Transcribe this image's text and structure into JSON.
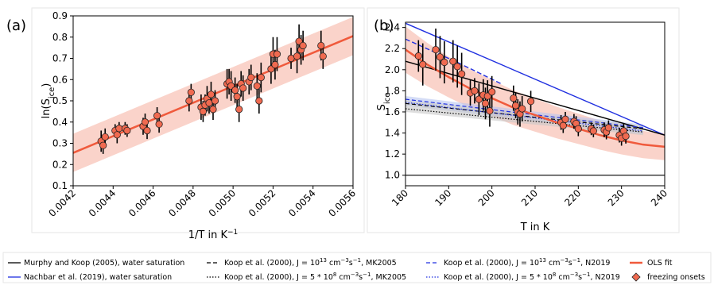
{
  "colors": {
    "fit": "#f05a3c",
    "band": "#f8c4b8",
    "marker_fill": "#f06a50",
    "marker_edge": "#222222",
    "errbar": "#000000",
    "murphy": "#000000",
    "nachbar": "#2030e0",
    "blue_band": "#b8c4f0",
    "gray_band": "#c8c8c8"
  },
  "chart_data": [
    {
      "panel": "(a)",
      "type": "scatter",
      "xlabel": "1/T in K",
      "xlabel_sup": "−1",
      "ylabel": "ln(S",
      "ylabel_sub": "ice",
      "ylabel_end": ")",
      "xlim": [
        0.0042,
        0.0056
      ],
      "ylim": [
        0.1,
        0.9
      ],
      "xticks": [
        "0.0042",
        "0.0044",
        "0.0046",
        "0.0048",
        "0.0050",
        "0.0052",
        "0.0054",
        "0.0056"
      ],
      "yticks": [
        "0.1",
        "0.2",
        "0.3",
        "0.4",
        "0.5",
        "0.6",
        "0.7",
        "0.8",
        "0.9"
      ],
      "fit_line": [
        [
          0.0042,
          0.255
        ],
        [
          0.0056,
          0.805
        ]
      ],
      "band_halfwidth": 0.09,
      "points": [
        {
          "x": 0.00434,
          "y": 0.31,
          "err": 0.05
        },
        {
          "x": 0.00435,
          "y": 0.29,
          "err": 0.04
        },
        {
          "x": 0.00436,
          "y": 0.33,
          "err": 0.04
        },
        {
          "x": 0.00441,
          "y": 0.36,
          "err": 0.03
        },
        {
          "x": 0.00442,
          "y": 0.34,
          "err": 0.04
        },
        {
          "x": 0.00443,
          "y": 0.37,
          "err": 0.03
        },
        {
          "x": 0.00446,
          "y": 0.37,
          "err": 0.03
        },
        {
          "x": 0.00447,
          "y": 0.36,
          "err": 0.03
        },
        {
          "x": 0.00455,
          "y": 0.38,
          "err": 0.04
        },
        {
          "x": 0.00456,
          "y": 0.4,
          "err": 0.04
        },
        {
          "x": 0.00457,
          "y": 0.36,
          "err": 0.04
        },
        {
          "x": 0.00462,
          "y": 0.43,
          "err": 0.04
        },
        {
          "x": 0.00463,
          "y": 0.39,
          "err": 0.04
        },
        {
          "x": 0.00478,
          "y": 0.5,
          "err": 0.05
        },
        {
          "x": 0.00479,
          "y": 0.54,
          "err": 0.04
        },
        {
          "x": 0.00484,
          "y": 0.47,
          "err": 0.06
        },
        {
          "x": 0.00485,
          "y": 0.45,
          "err": 0.05
        },
        {
          "x": 0.00486,
          "y": 0.48,
          "err": 0.05
        },
        {
          "x": 0.00487,
          "y": 0.51,
          "err": 0.06
        },
        {
          "x": 0.00488,
          "y": 0.49,
          "err": 0.05
        },
        {
          "x": 0.00489,
          "y": 0.53,
          "err": 0.06
        },
        {
          "x": 0.0049,
          "y": 0.46,
          "err": 0.05
        },
        {
          "x": 0.00491,
          "y": 0.5,
          "err": 0.05
        },
        {
          "x": 0.00497,
          "y": 0.58,
          "err": 0.07
        },
        {
          "x": 0.00498,
          "y": 0.59,
          "err": 0.06
        },
        {
          "x": 0.00499,
          "y": 0.57,
          "err": 0.07
        },
        {
          "x": 0.00501,
          "y": 0.55,
          "err": 0.06
        },
        {
          "x": 0.00502,
          "y": 0.52,
          "err": 0.06
        },
        {
          "x": 0.00503,
          "y": 0.46,
          "err": 0.06
        },
        {
          "x": 0.00504,
          "y": 0.58,
          "err": 0.06
        },
        {
          "x": 0.00505,
          "y": 0.56,
          "err": 0.06
        },
        {
          "x": 0.00508,
          "y": 0.59,
          "err": 0.06
        },
        {
          "x": 0.00509,
          "y": 0.61,
          "err": 0.06
        },
        {
          "x": 0.00512,
          "y": 0.57,
          "err": 0.06
        },
        {
          "x": 0.00513,
          "y": 0.5,
          "err": 0.06
        },
        {
          "x": 0.00514,
          "y": 0.61,
          "err": 0.07
        },
        {
          "x": 0.00519,
          "y": 0.65,
          "err": 0.07
        },
        {
          "x": 0.0052,
          "y": 0.72,
          "err": 0.08
        },
        {
          "x": 0.00521,
          "y": 0.67,
          "err": 0.07
        },
        {
          "x": 0.00522,
          "y": 0.72,
          "err": 0.08
        },
        {
          "x": 0.00529,
          "y": 0.7,
          "err": 0.05
        },
        {
          "x": 0.00532,
          "y": 0.71,
          "err": 0.08
        },
        {
          "x": 0.00533,
          "y": 0.78,
          "err": 0.08
        },
        {
          "x": 0.00534,
          "y": 0.74,
          "err": 0.07
        },
        {
          "x": 0.00535,
          "y": 0.76,
          "err": 0.07
        },
        {
          "x": 0.00544,
          "y": 0.76,
          "err": 0.07
        },
        {
          "x": 0.00545,
          "y": 0.71,
          "err": 0.06
        }
      ]
    },
    {
      "panel": "(b)",
      "type": "scatter",
      "xlabel": "T in K",
      "ylabel": "S",
      "ylabel_sub": "ice",
      "xlim": [
        180,
        240
      ],
      "ylim": [
        0.9,
        2.45
      ],
      "xticks": [
        "180",
        "190",
        "200",
        "210",
        "220",
        "230",
        "240"
      ],
      "yticks": [
        "1.0",
        "1.2",
        "1.4",
        "1.6",
        "1.8",
        "2.0",
        "2.2",
        "2.4"
      ],
      "ols_fit": [
        [
          180,
          2.19
        ],
        [
          185,
          2.05
        ],
        [
          190,
          1.93
        ],
        [
          195,
          1.82
        ],
        [
          200,
          1.73
        ],
        [
          205,
          1.64
        ],
        [
          210,
          1.57
        ],
        [
          215,
          1.5
        ],
        [
          220,
          1.44
        ],
        [
          225,
          1.38
        ],
        [
          230,
          1.33
        ],
        [
          235,
          1.29
        ],
        [
          240,
          1.27
        ]
      ],
      "ols_band": 0.22,
      "murphy_sat": [
        [
          180,
          2.08
        ],
        [
          240,
          1.38
        ]
      ],
      "nachbar_sat": [
        [
          180,
          2.44
        ],
        [
          240,
          1.38
        ]
      ],
      "koop_mk_13": [
        [
          180,
          1.68
        ],
        [
          235,
          1.44
        ]
      ],
      "koop_mk_5e8": [
        [
          180,
          1.63
        ],
        [
          235,
          1.41
        ]
      ],
      "koop_n_13": [
        [
          180,
          2.29
        ],
        [
          192,
          2.07
        ],
        [
          202,
          1.87
        ]
      ],
      "koop_n_13b": [
        [
          180,
          1.72
        ],
        [
          235,
          1.45
        ]
      ],
      "koop_n_5e8": [
        [
          180,
          1.69
        ],
        [
          235,
          1.42
        ]
      ],
      "horizontal_line": 1.0,
      "points": [
        {
          "x": 183,
          "y": 2.13,
          "err": 0.15
        },
        {
          "x": 184,
          "y": 2.05,
          "err": 0.2
        },
        {
          "x": 187,
          "y": 2.19,
          "err": 0.2
        },
        {
          "x": 188,
          "y": 2.12,
          "err": 0.2
        },
        {
          "x": 189,
          "y": 2.07,
          "err": 0.2
        },
        {
          "x": 191,
          "y": 2.08,
          "err": 0.2
        },
        {
          "x": 192,
          "y": 2.03,
          "err": 0.2
        },
        {
          "x": 193,
          "y": 1.96,
          "err": 0.2
        },
        {
          "x": 195,
          "y": 1.78,
          "err": 0.12
        },
        {
          "x": 196,
          "y": 1.8,
          "err": 0.12
        },
        {
          "x": 197,
          "y": 1.72,
          "err": 0.15
        },
        {
          "x": 198,
          "y": 1.76,
          "err": 0.15
        },
        {
          "x": 198.5,
          "y": 1.68,
          "err": 0.15
        },
        {
          "x": 199,
          "y": 1.75,
          "err": 0.15
        },
        {
          "x": 199.5,
          "y": 1.61,
          "err": 0.15
        },
        {
          "x": 200,
          "y": 1.79,
          "err": 0.15
        },
        {
          "x": 205,
          "y": 1.73,
          "err": 0.12
        },
        {
          "x": 205.5,
          "y": 1.66,
          "err": 0.12
        },
        {
          "x": 206,
          "y": 1.6,
          "err": 0.12
        },
        {
          "x": 206.5,
          "y": 1.58,
          "err": 0.12
        },
        {
          "x": 207,
          "y": 1.63,
          "err": 0.12
        },
        {
          "x": 209,
          "y": 1.7,
          "err": 0.1
        },
        {
          "x": 216,
          "y": 1.5,
          "err": 0.07
        },
        {
          "x": 216.5,
          "y": 1.47,
          "err": 0.07
        },
        {
          "x": 217,
          "y": 1.53,
          "err": 0.07
        },
        {
          "x": 219,
          "y": 1.51,
          "err": 0.07
        },
        {
          "x": 219.5,
          "y": 1.49,
          "err": 0.07
        },
        {
          "x": 220,
          "y": 1.44,
          "err": 0.07
        },
        {
          "x": 223,
          "y": 1.44,
          "err": 0.06
        },
        {
          "x": 223.5,
          "y": 1.42,
          "err": 0.06
        },
        {
          "x": 226,
          "y": 1.43,
          "err": 0.07
        },
        {
          "x": 226.5,
          "y": 1.41,
          "err": 0.07
        },
        {
          "x": 227,
          "y": 1.45,
          "err": 0.07
        },
        {
          "x": 229.5,
          "y": 1.38,
          "err": 0.07
        },
        {
          "x": 230,
          "y": 1.35,
          "err": 0.07
        },
        {
          "x": 230.5,
          "y": 1.42,
          "err": 0.07
        },
        {
          "x": 231,
          "y": 1.37,
          "err": 0.07
        }
      ]
    }
  ],
  "legend": {
    "murphy": "Murphy and Koop (2005), water saturation",
    "nachbar": "Nachbar et al. (2019), water saturation",
    "koop_mk_13_pre": "Koop et al. (2000), J = 10",
    "koop_mk_13_sup": "13",
    "koop_mk_13_post": " cm",
    "koop_mk_13_post_sup": "−3",
    "koop_mk_13_tail": "s",
    "koop_mk_13_tail_sup": "−1",
    "koop_mk_13_end": ", MK2005",
    "koop_mk_5e8_pre": "Koop et al. (2000), J = 5 * 10",
    "koop_mk_5e8_sup": "8",
    "koop_mk_5e8_end": ", MK2005",
    "koop_n_13_pre": "Koop et al. (2000), J = 10",
    "koop_n_13_end": ", N2019",
    "koop_n_5e8_pre": "Koop et al. (2000), J = 5 * 10",
    "koop_n_5e8_end": ", N2019",
    "ols": "OLS fit",
    "freezing": "freezing onsets"
  }
}
